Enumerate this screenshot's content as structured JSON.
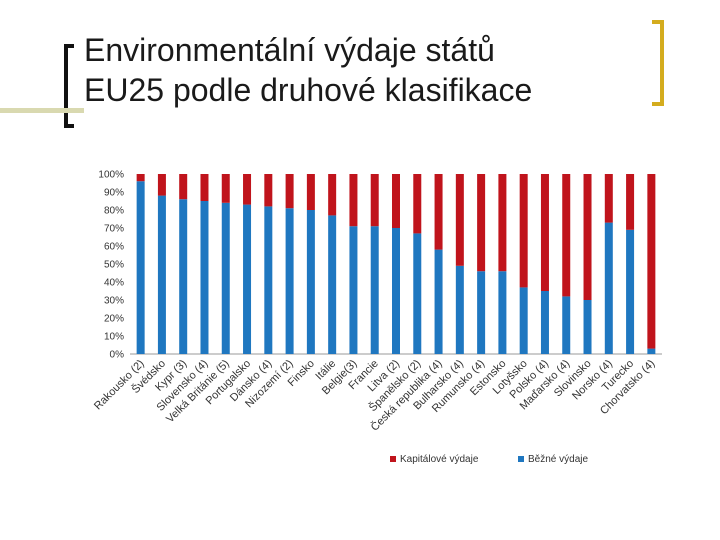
{
  "slide": {
    "title_line1": "Environmentální výdaje států",
    "title_line2": "EU25 podle druhové klasifikace",
    "bracket_color": "#d4ac1e"
  },
  "chart_data": {
    "type": "bar",
    "stacked": true,
    "title": "",
    "xlabel": "",
    "ylabel": "",
    "ylim": [
      0,
      100
    ],
    "yticks": [
      "0%",
      "10%",
      "20%",
      "30%",
      "40%",
      "50%",
      "60%",
      "70%",
      "80%",
      "90%",
      "100%"
    ],
    "categories": [
      "Rakousko (2)",
      "Švédsko",
      "Kypr (3)",
      "Slovensko (4)",
      "Velká Británie (5)",
      "Portugalsko",
      "Dánsko (4)",
      "Nizozemí (2)",
      "Finsko",
      "Itálie",
      "Belgie(3)",
      "Francie",
      "Litva (2)",
      "Španělsko (2)",
      "Česká republika (4)",
      "Bulharsko (4)",
      "Rumunsko (4)",
      "Estonsko",
      "Lotyšsko",
      "Polsko (4)",
      "Maďarsko (4)",
      "Slovinsko",
      "Norsko (4)",
      "Turecko",
      "Chorvatsko (4)"
    ],
    "series": [
      {
        "name": "Běžné výdaje",
        "color": "#1f77c0",
        "values": [
          96,
          88,
          86,
          85,
          84,
          83,
          82,
          81,
          80,
          77,
          71,
          71,
          70,
          67,
          58,
          49,
          46,
          46,
          37,
          35,
          32,
          30,
          73,
          69,
          3
        ]
      },
      {
        "name": "Kapitálové výdaje",
        "color": "#c0141c",
        "values": [
          4,
          12,
          14,
          15,
          16,
          17,
          18,
          19,
          20,
          23,
          29,
          29,
          30,
          33,
          42,
          51,
          54,
          54,
          63,
          65,
          68,
          70,
          27,
          31,
          97
        ]
      }
    ],
    "legend": [
      {
        "label": "Kapitálové výdaje",
        "color": "#c0141c"
      },
      {
        "label": "Běžné výdaje",
        "color": "#1f77c0"
      }
    ],
    "legend_position": "bottom-right"
  }
}
